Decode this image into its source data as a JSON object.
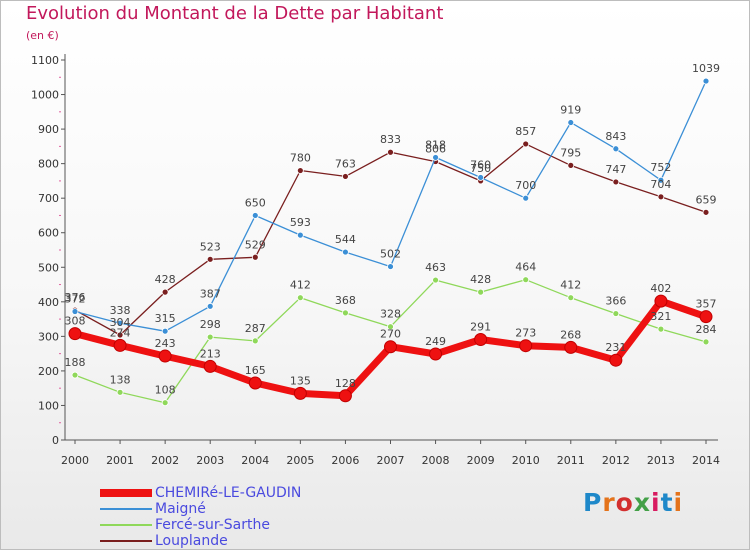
{
  "title": "Evolution du Montant de la Dette par Habitant",
  "subtitle": "(en €)",
  "logo": {
    "text": "Proxiti",
    "letters": [
      "P",
      "r",
      "o",
      "x",
      "i",
      "t",
      "i"
    ],
    "colors": [
      "#1e88c9",
      "#e4731b",
      "#d32f2f",
      "#43a047",
      "#d81b60",
      "#1e88c9",
      "#e4731b"
    ]
  },
  "chart_data": {
    "type": "line",
    "title": "Evolution du Montant de la Dette par Habitant",
    "ylabel": "(en €)",
    "xlabel": "",
    "ylim": [
      0,
      1100
    ],
    "yticks": [
      0,
      100,
      200,
      300,
      400,
      500,
      600,
      700,
      800,
      900,
      1000,
      1100
    ],
    "grid": false,
    "legend_position": "bottom-left",
    "x": [
      "2000",
      "2001",
      "2002",
      "2003",
      "2004",
      "2005",
      "2006",
      "2007",
      "2008",
      "2009",
      "2010",
      "2011",
      "2012",
      "2013",
      "2014"
    ],
    "series": [
      {
        "name": "CHEMIRé-LE-GAUDIN",
        "color": "#ee1111",
        "values": [
          308,
          274,
          243,
          213,
          165,
          135,
          128,
          270,
          249,
          291,
          273,
          268,
          231,
          402,
          357
        ]
      },
      {
        "name": "Maigné",
        "color": "#3b8fd6",
        "values": [
          372,
          338,
          315,
          387,
          650,
          593,
          544,
          502,
          818,
          760,
          700,
          919,
          843,
          752,
          1039
        ]
      },
      {
        "name": "Fercé-sur-Sarthe",
        "color": "#8fd85a",
        "values": [
          188,
          138,
          108,
          298,
          287,
          412,
          368,
          328,
          463,
          428,
          464,
          412,
          366,
          321,
          284
        ]
      },
      {
        "name": "Louplande",
        "color": "#7a1f1f",
        "values": [
          376,
          304,
          428,
          523,
          529,
          780,
          763,
          833,
          806,
          750,
          857,
          795,
          747,
          704,
          659
        ]
      }
    ]
  }
}
